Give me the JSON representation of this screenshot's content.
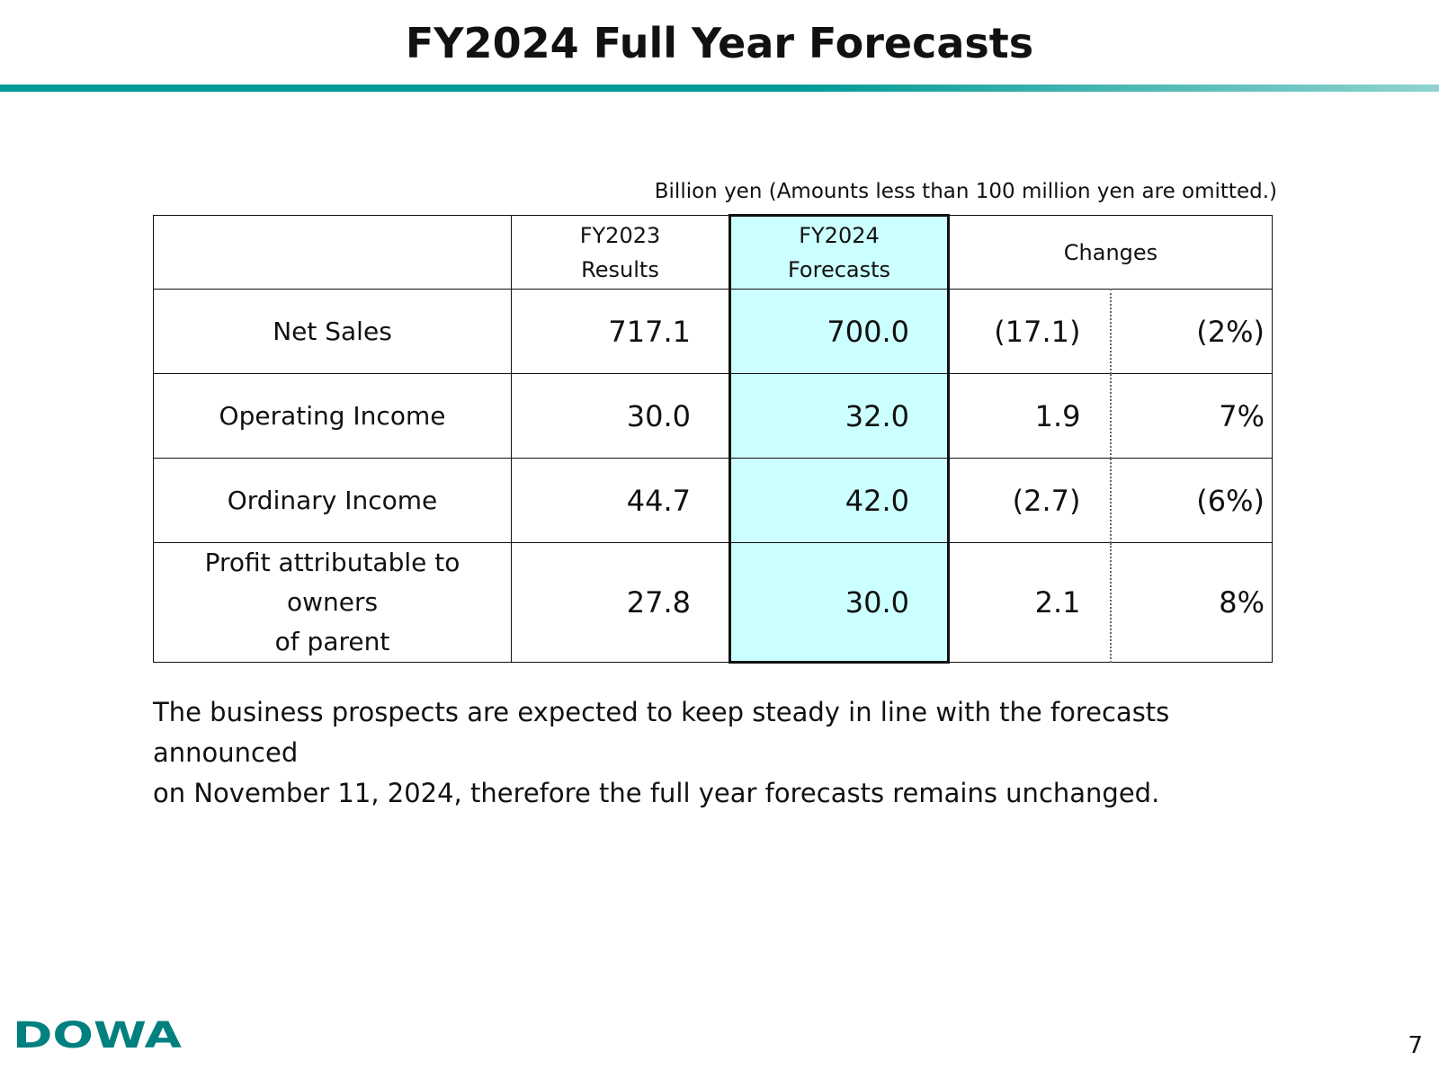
{
  "title": "FY2024 Full Year Forecasts",
  "units_note": "Billion yen (Amounts less than 100 million yen are omitted.)",
  "table": {
    "headers": {
      "results_line1": "FY2023",
      "results_line2": "Results",
      "forecasts_line1": "FY2024",
      "forecasts_line2": "Forecasts",
      "changes": "Changes"
    },
    "rows": [
      {
        "label": "Net Sales",
        "label_line2": "",
        "results": "717.1",
        "forecast": "700.0",
        "change": "(17.1)",
        "change_pct": "(2%)"
      },
      {
        "label": "Operating Income",
        "label_line2": "",
        "results": "30.0",
        "forecast": "32.0",
        "change": "1.9",
        "change_pct": "7%"
      },
      {
        "label": "Ordinary Income",
        "label_line2": "",
        "results": "44.7",
        "forecast": "42.0",
        "change": "(2.7)",
        "change_pct": "(6%)"
      },
      {
        "label": "Profit attributable to owners",
        "label_line2": "of parent",
        "results": "27.8",
        "forecast": "30.0",
        "change": "2.1",
        "change_pct": "8%"
      }
    ]
  },
  "commentary": {
    "line1": " The business prospects are expected to keep steady in line with the forecasts announced",
    "line2": "on November 11, 2024, therefore the full year forecasts remains unchanged."
  },
  "footer": {
    "logo_text": "DOWA",
    "page_number": "7"
  },
  "colors": {
    "accent_teal": "#009a96",
    "forecast_highlight": "#ccffff",
    "logo_color": "#00807e"
  }
}
